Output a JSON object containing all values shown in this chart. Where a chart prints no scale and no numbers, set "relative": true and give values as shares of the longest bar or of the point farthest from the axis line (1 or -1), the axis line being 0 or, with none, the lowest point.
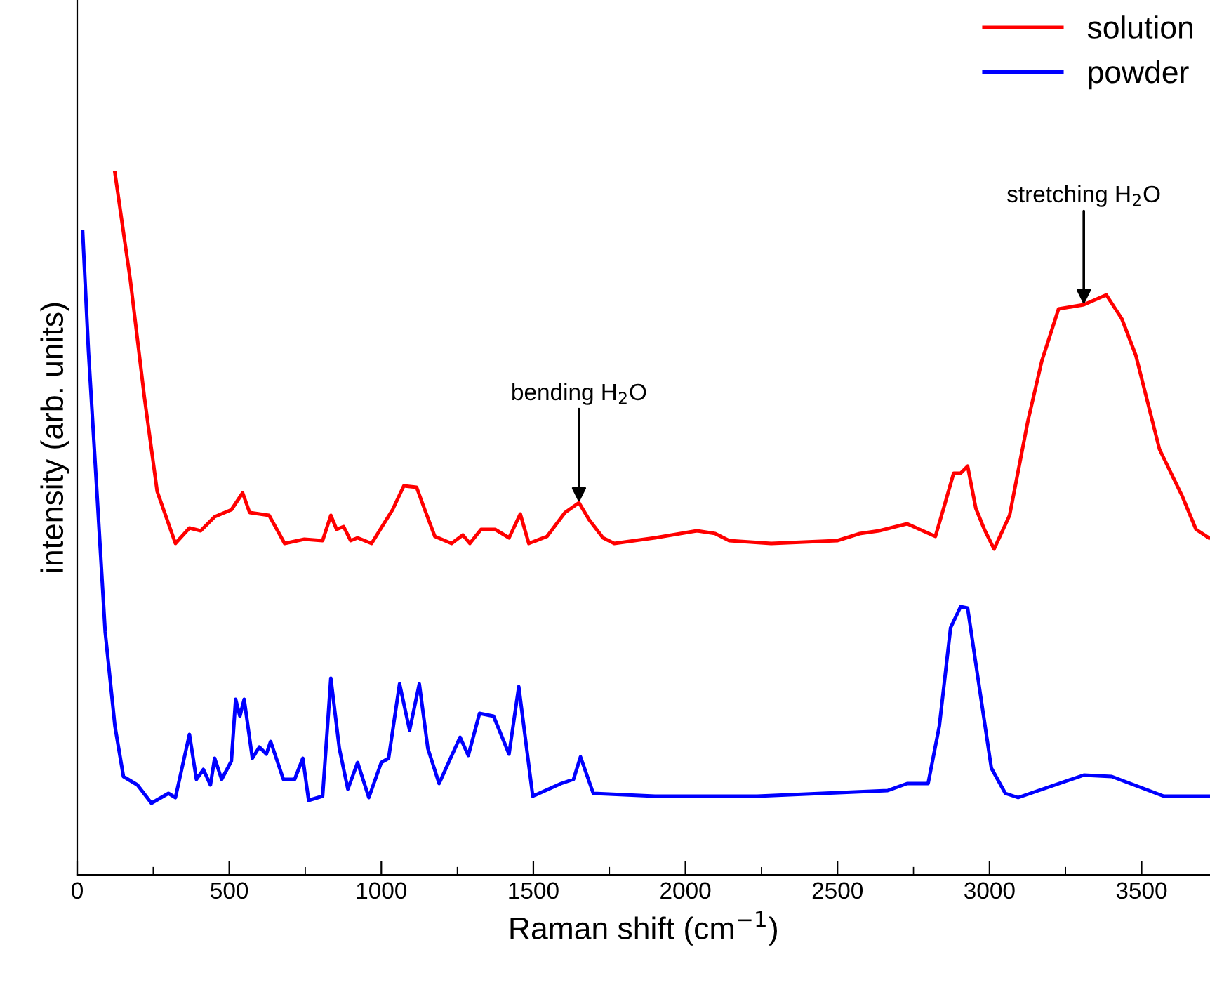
{
  "chart_data": {
    "type": "line",
    "relative": true,
    "xlabel": "Raman shift (cm$^{−1}$)",
    "ylabel": "intensity (arb. units)",
    "xlim": [
      0,
      3725
    ],
    "xticks": [
      0,
      500,
      1000,
      1500,
      2000,
      2500,
      3000,
      3500
    ],
    "grid": false,
    "legend": "top right",
    "marker": "none",
    "line_style": "solid",
    "annotations": [
      {
        "text": "bending H$_{2}$O",
        "x": 1650,
        "y": 0.53
      },
      {
        "text": "stretching H$_{2}$O",
        "x": 3310,
        "y": 0.812
      }
    ],
    "series": [
      {
        "name": "solution",
        "color": "#ff0000",
        "x": [
          124,
          175,
          221,
          263,
          323,
          369,
          406,
          452,
          507,
          544,
          567,
          631,
          682,
          747,
          807,
          834,
          853,
          876,
          899,
          922,
          968,
          1037,
          1074,
          1116,
          1143,
          1176,
          1231,
          1268,
          1291,
          1328,
          1374,
          1420,
          1457,
          1485,
          1545,
          1604,
          1650,
          1683,
          1729,
          1766,
          1900,
          2038,
          2098,
          2144,
          2282,
          2499,
          2573,
          2637,
          2729,
          2822,
          2849,
          2882,
          2905,
          2928,
          2955,
          2983,
          3015,
          3066,
          3126,
          3172,
          3227,
          3310,
          3384,
          3435,
          3481,
          3559,
          3633,
          3679,
          3721
        ],
        "values": [
          1.0,
          0.846,
          0.68,
          0.546,
          0.472,
          0.494,
          0.49,
          0.51,
          0.52,
          0.544,
          0.516,
          0.512,
          0.472,
          0.478,
          0.476,
          0.512,
          0.492,
          0.496,
          0.476,
          0.48,
          0.472,
          0.52,
          0.554,
          0.552,
          0.52,
          0.482,
          0.472,
          0.484,
          0.472,
          0.492,
          0.492,
          0.48,
          0.514,
          0.472,
          0.482,
          0.516,
          0.53,
          0.506,
          0.48,
          0.472,
          0.48,
          0.49,
          0.486,
          0.476,
          0.472,
          0.476,
          0.486,
          0.49,
          0.5,
          0.482,
          0.522,
          0.572,
          0.572,
          0.582,
          0.522,
          0.492,
          0.464,
          0.512,
          0.646,
          0.732,
          0.806,
          0.812,
          0.826,
          0.792,
          0.74,
          0.606,
          0.54,
          0.492,
          0.48
        ]
      },
      {
        "name": "powder",
        "color": "#0000ff",
        "x": [
          18,
          37,
          60,
          92,
          124,
          152,
          198,
          244,
          300,
          323,
          369,
          392,
          415,
          438,
          452,
          475,
          507,
          521,
          535,
          549,
          576,
          599,
          622,
          636,
          678,
          715,
          742,
          761,
          807,
          834,
          862,
          890,
          922,
          959,
          1000,
          1024,
          1060,
          1093,
          1125,
          1153,
          1190,
          1259,
          1286,
          1323,
          1369,
          1420,
          1452,
          1498,
          1591,
          1632,
          1655,
          1697,
          1900,
          2236,
          2665,
          2729,
          2798,
          2835,
          2872,
          2905,
          2928,
          2960,
          3006,
          3052,
          3094,
          3310,
          3402,
          3573,
          3721
        ],
        "values": [
          0.916,
          0.746,
          0.58,
          0.346,
          0.212,
          0.14,
          0.128,
          0.102,
          0.116,
          0.11,
          0.2,
          0.136,
          0.15,
          0.128,
          0.166,
          0.136,
          0.162,
          0.25,
          0.226,
          0.25,
          0.166,
          0.182,
          0.172,
          0.19,
          0.136,
          0.136,
          0.166,
          0.106,
          0.112,
          0.28,
          0.18,
          0.122,
          0.16,
          0.11,
          0.16,
          0.166,
          0.272,
          0.206,
          0.272,
          0.18,
          0.13,
          0.196,
          0.17,
          0.23,
          0.226,
          0.172,
          0.268,
          0.112,
          0.13,
          0.136,
          0.168,
          0.116,
          0.112,
          0.112,
          0.12,
          0.13,
          0.13,
          0.212,
          0.352,
          0.382,
          0.38,
          0.286,
          0.152,
          0.116,
          0.11,
          0.142,
          0.14,
          0.112,
          0.112
        ]
      }
    ]
  }
}
